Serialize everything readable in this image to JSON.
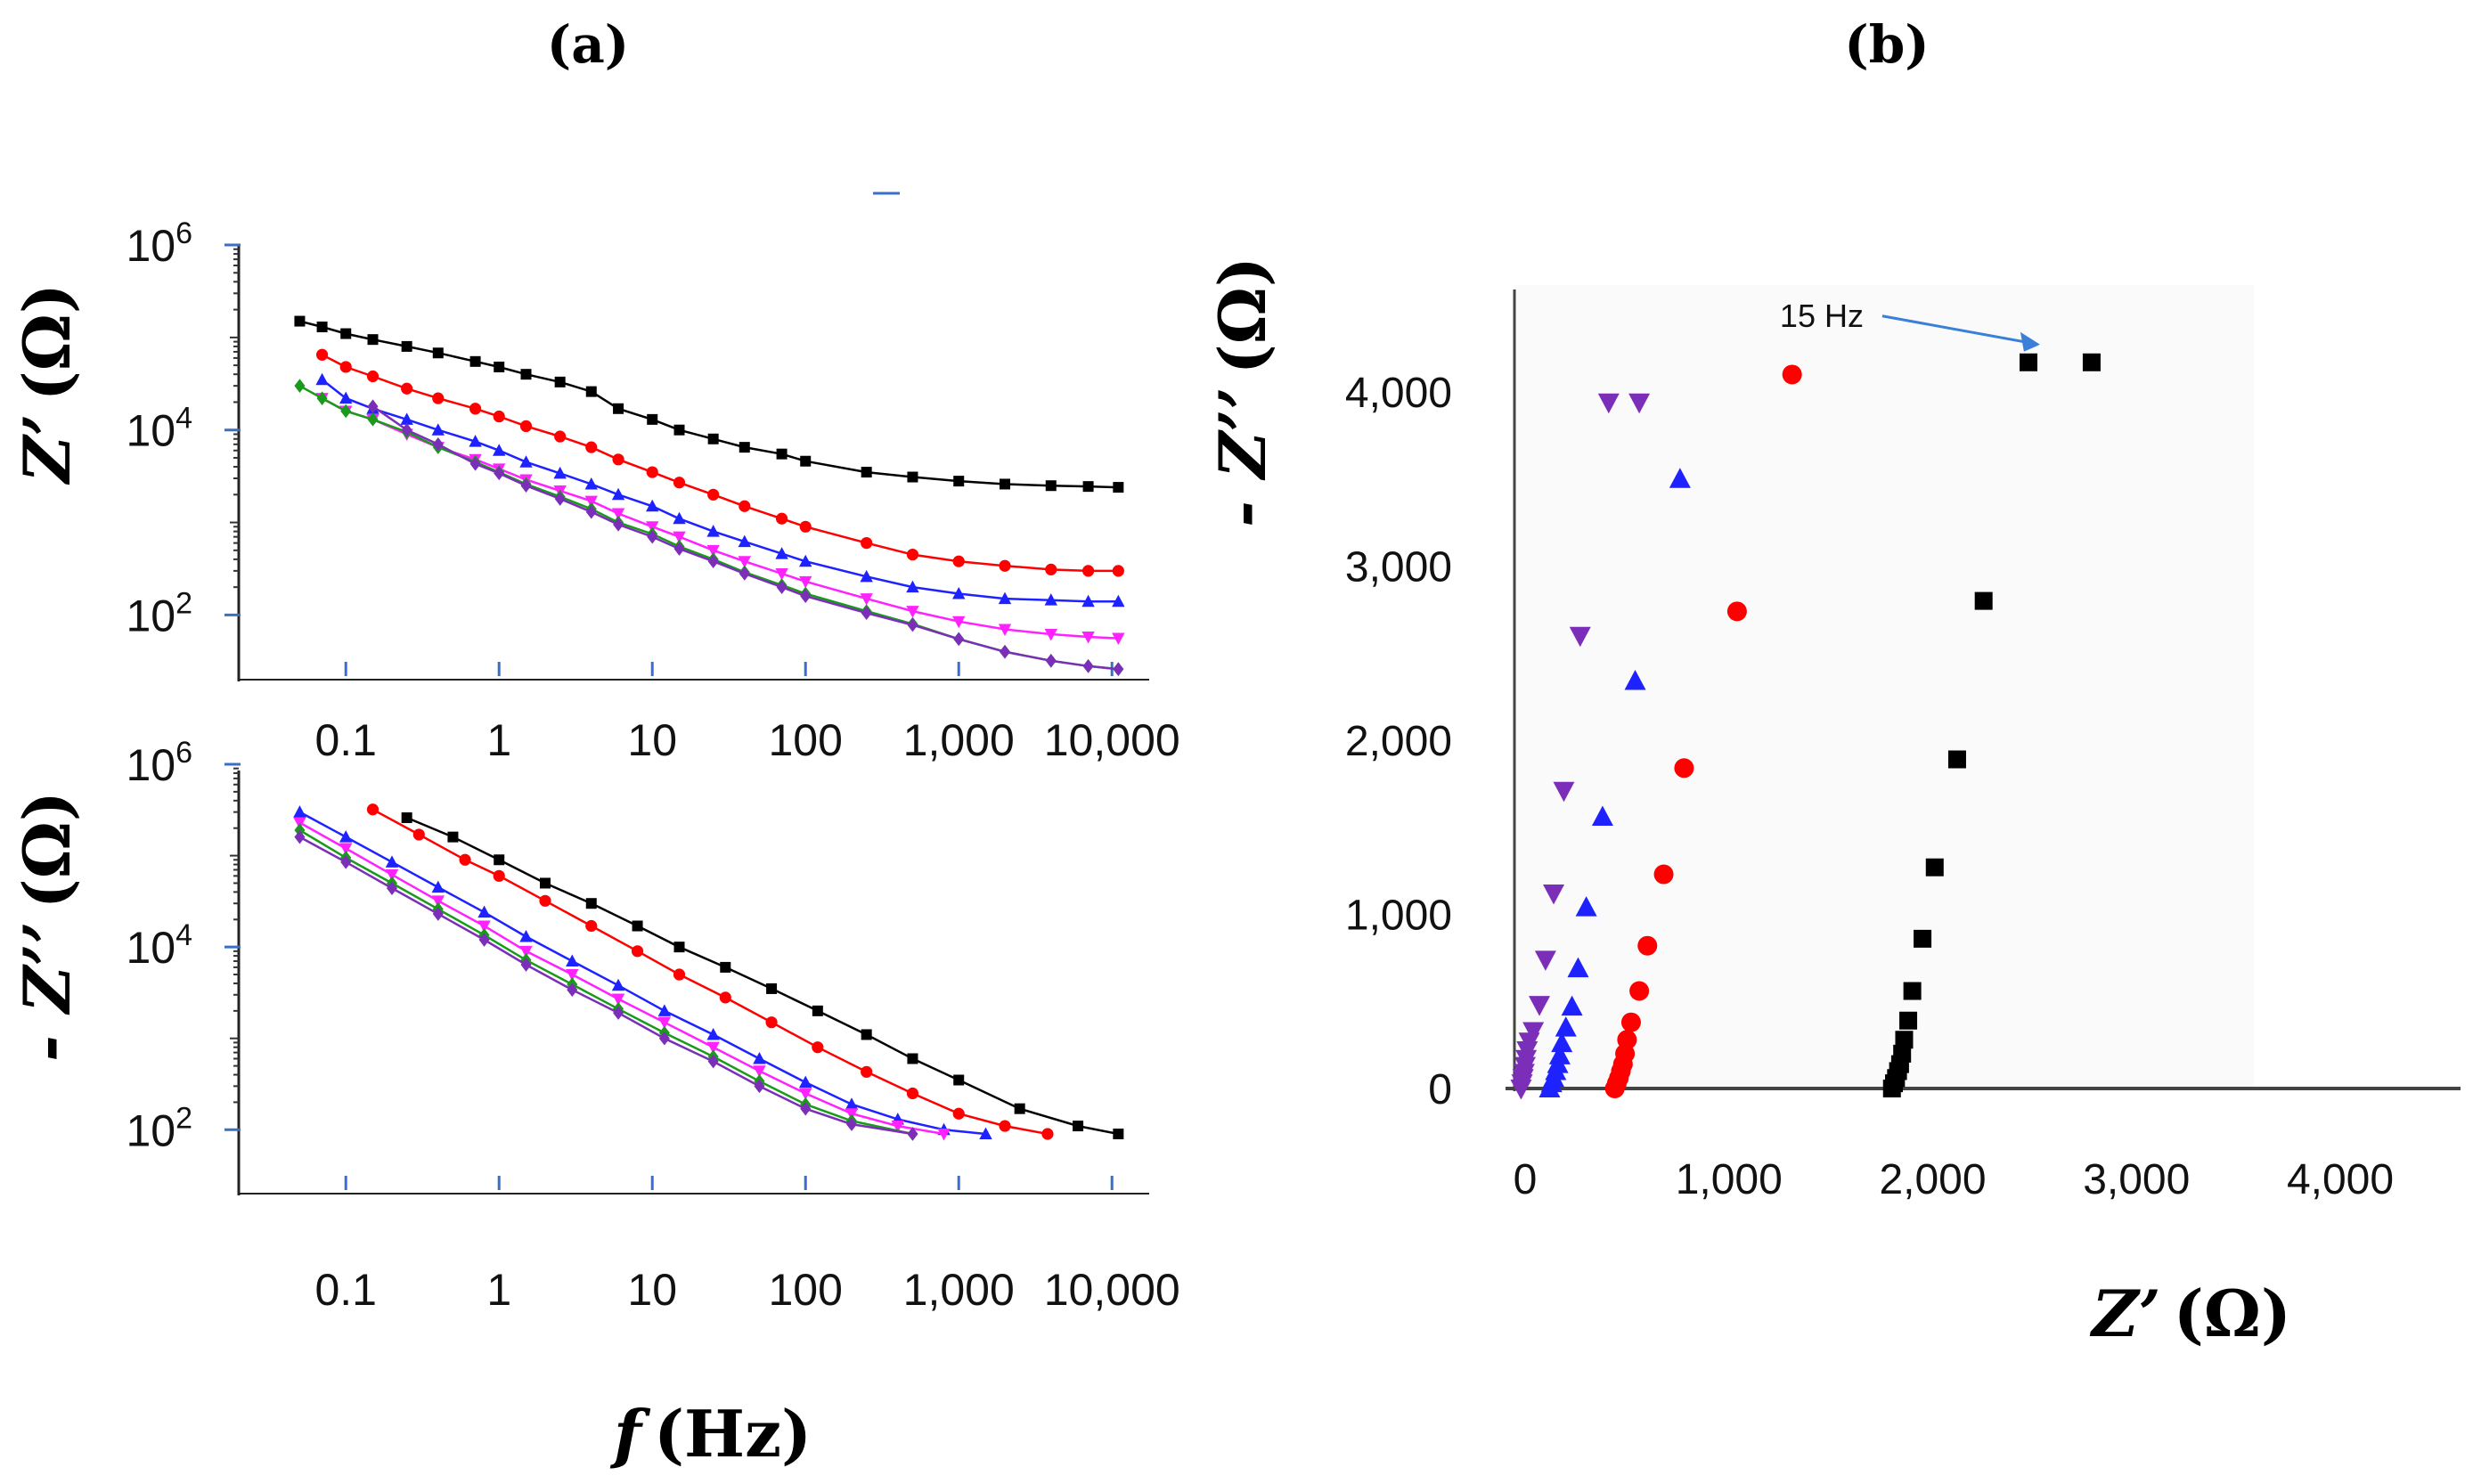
{
  "panels": {
    "a": "(a)",
    "b": "(b)"
  },
  "colors": {
    "black": "#000000",
    "red": "#ff0000",
    "blue": "#1e22ff",
    "magenta": "#ff22ff",
    "green": "#1a9a1a",
    "purple": "#7b2fb8",
    "axis_blue": "#3a6fc8",
    "annotation_arrow": "#3a7fd8"
  },
  "chart_data": [
    {
      "panel": "a-top",
      "type": "line",
      "xscale": "log",
      "yscale": "log",
      "xlim": [
        0.02,
        20000
      ],
      "ylim": [
        20,
        1000000
      ],
      "xticks": [
        {
          "v": 0.1,
          "label": "0.1"
        },
        {
          "v": 1,
          "label": "1"
        },
        {
          "v": 10,
          "label": "10"
        },
        {
          "v": 100,
          "label": "100"
        },
        {
          "v": 1000,
          "label": "1,000"
        },
        {
          "v": 10000,
          "label": "10,000"
        }
      ],
      "yticks": [
        {
          "v": 100,
          "label": "10",
          "sup": "2"
        },
        {
          "v": 10000,
          "label": "10",
          "sup": "4"
        },
        {
          "v": 1000000,
          "label": "10",
          "sup": "6"
        }
      ],
      "ylabel_main": "Z’",
      "ylabel_unit": "(Ω)",
      "xlabel": "",
      "series": [
        {
          "color": "black",
          "marker": "square",
          "x": [
            0.05,
            0.07,
            0.1,
            0.15,
            0.25,
            0.4,
            0.7,
            1,
            1.5,
            2.5,
            4,
            6,
            10,
            15,
            25,
            40,
            70,
            100,
            250,
            500,
            1000,
            2000,
            4000,
            7000,
            11000
          ],
          "y": [
            150000,
            130000,
            110000,
            95000,
            80000,
            68000,
            55000,
            48000,
            40000,
            33000,
            26000,
            17000,
            13000,
            10000,
            8000,
            6500,
            5500,
            4600,
            3500,
            3100,
            2800,
            2600,
            2500,
            2450,
            2400
          ]
        },
        {
          "color": "red",
          "marker": "circle",
          "x": [
            0.07,
            0.1,
            0.15,
            0.25,
            0.4,
            0.7,
            1,
            1.5,
            2.5,
            4,
            6,
            10,
            15,
            25,
            40,
            70,
            100,
            250,
            500,
            1000,
            2000,
            4000,
            7000,
            11000
          ],
          "y": [
            65000,
            48000,
            38000,
            28000,
            22000,
            17000,
            14000,
            11000,
            8500,
            6500,
            4800,
            3500,
            2700,
            2000,
            1500,
            1100,
            900,
            600,
            450,
            380,
            340,
            310,
            300,
            300
          ]
        },
        {
          "color": "blue",
          "marker": "triangle",
          "x": [
            0.07,
            0.1,
            0.15,
            0.25,
            0.4,
            0.7,
            1,
            1.5,
            2.5,
            4,
            6,
            10,
            15,
            25,
            40,
            70,
            100,
            250,
            500,
            1000,
            2000,
            4000,
            7000,
            11000
          ],
          "y": [
            35000,
            22000,
            17000,
            13000,
            10000,
            7500,
            6000,
            4500,
            3400,
            2600,
            2000,
            1500,
            1100,
            800,
            620,
            460,
            380,
            260,
            200,
            170,
            150,
            145,
            140,
            140
          ]
        },
        {
          "color": "magenta",
          "marker": "triangle-down",
          "x": [
            0.07,
            0.1,
            0.15,
            0.25,
            0.4,
            0.7,
            1,
            1.5,
            2.5,
            4,
            6,
            10,
            15,
            25,
            40,
            70,
            100,
            250,
            500,
            1000,
            2000,
            4000,
            7000,
            11000
          ],
          "y": [
            22000,
            16000,
            13000,
            9000,
            6500,
            4800,
            3800,
            2900,
            2200,
            1700,
            1250,
            900,
            700,
            500,
            380,
            280,
            230,
            150,
            110,
            85,
            70,
            62,
            58,
            56
          ]
        },
        {
          "color": "green",
          "marker": "diamond",
          "x": [
            0.05,
            0.07,
            0.1,
            0.15,
            0.25,
            0.4,
            0.7,
            1,
            1.5,
            2.5,
            4,
            6,
            10,
            15,
            25,
            40,
            70,
            100,
            250,
            500,
            1000,
            2000,
            4000,
            7000,
            11000
          ],
          "y": [
            30000,
            22000,
            16000,
            13000,
            9500,
            6500,
            4500,
            3500,
            2600,
            1900,
            1400,
            1000,
            750,
            550,
            400,
            290,
            210,
            170,
            110,
            80,
            55,
            40,
            32,
            28,
            26
          ]
        },
        {
          "color": "purple",
          "marker": "diamond",
          "x": [
            0.15,
            0.25,
            0.4,
            0.7,
            1,
            1.5,
            2.5,
            4,
            6,
            10,
            15,
            25,
            40,
            70,
            100,
            250,
            500,
            1000,
            2000,
            4000,
            7000,
            11000
          ],
          "y": [
            18000,
            10000,
            7000,
            4300,
            3400,
            2500,
            1800,
            1300,
            950,
            700,
            520,
            380,
            280,
            200,
            160,
            105,
            78,
            55,
            40,
            32,
            28,
            26
          ]
        }
      ]
    },
    {
      "panel": "a-bottom",
      "type": "line",
      "xscale": "log",
      "yscale": "log",
      "xlim": [
        0.02,
        20000
      ],
      "ylim": [
        20,
        1000000
      ],
      "xticks": [
        {
          "v": 0.1,
          "label": "0.1"
        },
        {
          "v": 1,
          "label": "1"
        },
        {
          "v": 10,
          "label": "10"
        },
        {
          "v": 100,
          "label": "100"
        },
        {
          "v": 1000,
          "label": "1,000"
        },
        {
          "v": 10000,
          "label": "10,000"
        }
      ],
      "yticks": [
        {
          "v": 100,
          "label": "10",
          "sup": "2"
        },
        {
          "v": 10000,
          "label": "10",
          "sup": "4"
        },
        {
          "v": 1000000,
          "label": "10",
          "sup": "6"
        }
      ],
      "ylabel_main": "- Z’’",
      "ylabel_unit": "(Ω)",
      "xlabel_main": "f",
      "xlabel_unit": "(Hz)",
      "series": [
        {
          "color": "black",
          "marker": "square",
          "x": [
            0.25,
            0.5,
            1,
            2,
            4,
            8,
            15,
            30,
            60,
            120,
            250,
            500,
            1000,
            2500,
            6000,
            11000
          ],
          "y": [
            260000,
            160000,
            90000,
            50000,
            30000,
            17000,
            10000,
            6000,
            3500,
            2000,
            1100,
            600,
            350,
            170,
            110,
            90
          ]
        },
        {
          "color": "red",
          "marker": "circle",
          "x": [
            0.15,
            0.3,
            0.6,
            1,
            2,
            4,
            8,
            15,
            30,
            60,
            120,
            250,
            500,
            1000,
            2000,
            3800
          ],
          "y": [
            320000,
            170000,
            90000,
            60000,
            32000,
            17000,
            9000,
            5000,
            2800,
            1500,
            800,
            430,
            250,
            150,
            110,
            90
          ]
        },
        {
          "color": "blue",
          "marker": "triangle",
          "x": [
            0.05,
            0.1,
            0.2,
            0.4,
            0.8,
            1.5,
            3,
            6,
            12,
            25,
            50,
            100,
            200,
            400,
            800,
            1500
          ],
          "y": [
            300000,
            160000,
            85000,
            45000,
            24000,
            13000,
            7000,
            3800,
            2000,
            1100,
            600,
            330,
            190,
            130,
            100,
            90
          ]
        },
        {
          "color": "magenta",
          "marker": "triangle-down",
          "x": [
            0.05,
            0.1,
            0.2,
            0.4,
            0.8,
            1.5,
            3,
            6,
            12,
            25,
            50,
            100,
            200,
            400,
            800
          ],
          "y": [
            230000,
            120000,
            62000,
            32000,
            17000,
            9000,
            5000,
            2700,
            1500,
            800,
            440,
            250,
            150,
            110,
            90
          ]
        },
        {
          "color": "green",
          "marker": "diamond",
          "x": [
            0.05,
            0.1,
            0.2,
            0.4,
            0.8,
            1.5,
            3,
            6,
            12,
            25,
            50,
            100,
            200,
            500
          ],
          "y": [
            190000,
            95000,
            50000,
            26000,
            13500,
            7200,
            3900,
            2100,
            1150,
            630,
            340,
            190,
            125,
            90
          ]
        },
        {
          "color": "purple",
          "marker": "diamond",
          "x": [
            0.05,
            0.1,
            0.2,
            0.4,
            0.8,
            1.5,
            3,
            6,
            12,
            25,
            50,
            100,
            200,
            500
          ],
          "y": [
            160000,
            85000,
            44000,
            23000,
            12000,
            6400,
            3400,
            1900,
            1000,
            560,
            300,
            170,
            115,
            90
          ]
        }
      ]
    },
    {
      "panel": "b",
      "type": "scatter",
      "xlim": [
        -120,
        4600
      ],
      "ylim": [
        -300,
        4600
      ],
      "xticks": [
        {
          "v": 0,
          "label": "0"
        },
        {
          "v": 1000,
          "label": "1,000"
        },
        {
          "v": 2000,
          "label": "2,000"
        },
        {
          "v": 3000,
          "label": "3,000"
        },
        {
          "v": 4000,
          "label": "4,000"
        }
      ],
      "yticks": [
        {
          "v": 0,
          "label": "0"
        },
        {
          "v": 1000,
          "label": "1,000"
        },
        {
          "v": 2000,
          "label": "2,000"
        },
        {
          "v": 3000,
          "label": "3,000"
        },
        {
          "v": 4000,
          "label": "4,000"
        }
      ],
      "xlabel_main": "Z’",
      "xlabel_unit": "(Ω)",
      "ylabel_main": "- Z’’",
      "ylabel_unit": "(Ω)",
      "annotation": {
        "text": "15 Hz",
        "x": 2780,
        "y": 4170
      },
      "series": [
        {
          "color": "black",
          "marker": "square",
          "x": [
            1800,
            1810,
            1820,
            1830,
            1840,
            1850,
            1860,
            1880,
            1900,
            1950,
            2010,
            2120,
            2250,
            2470,
            2780
          ],
          "y": [
            0,
            30,
            60,
            100,
            140,
            200,
            280,
            390,
            560,
            860,
            1270,
            1890,
            2800,
            4170,
            4170
          ]
        },
        {
          "color": "red",
          "marker": "circle",
          "x": [
            440,
            450,
            460,
            470,
            480,
            490,
            500,
            520,
            560,
            600,
            680,
            780,
            1040,
            1310
          ],
          "y": [
            0,
            30,
            60,
            100,
            140,
            200,
            280,
            380,
            560,
            820,
            1230,
            1840,
            2740,
            4100
          ]
        },
        {
          "color": "blue",
          "marker": "triangle",
          "x": [
            120,
            130,
            140,
            150,
            160,
            170,
            180,
            200,
            230,
            260,
            300,
            380,
            540,
            760
          ],
          "y": [
            0,
            30,
            60,
            100,
            140,
            190,
            260,
            350,
            470,
            690,
            1040,
            1560,
            2340,
            3500
          ]
        },
        {
          "color": "purple",
          "marker": "triangle-down",
          "x": [
            -20,
            -15,
            -10,
            -5,
            0,
            5,
            10,
            20,
            40,
            70,
            100,
            140,
            190,
            270,
            410,
            560
          ],
          "y": [
            0,
            30,
            60,
            90,
            130,
            170,
            220,
            270,
            330,
            480,
            740,
            1120,
            1710,
            2600,
            3940,
            3940
          ]
        }
      ]
    }
  ]
}
